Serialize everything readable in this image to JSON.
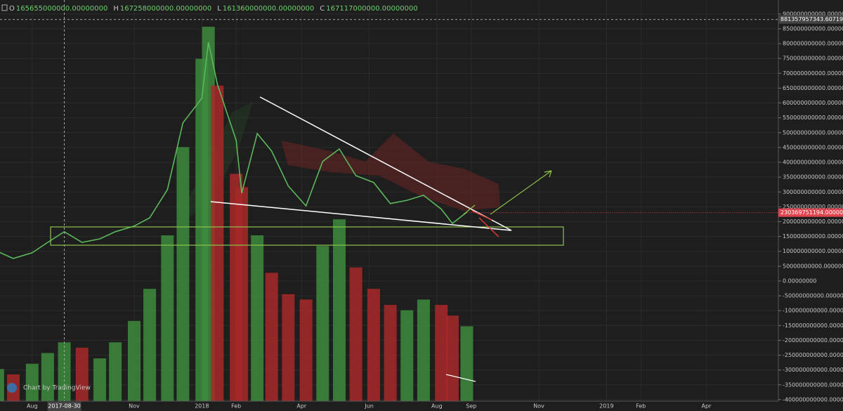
{
  "chart_data": {
    "type": "line",
    "header": {
      "items": [
        {
          "label": "O",
          "text": "165655000000.00000000"
        },
        {
          "label": "H",
          "text": "167258000000.00000000"
        },
        {
          "label": "L",
          "text": "161360000000.00000000"
        },
        {
          "label": "C",
          "text": "167117000000.00000000"
        }
      ]
    },
    "watermark": "Chart by TradingView",
    "x": [
      "2017-07-01",
      "2017-07-15",
      "2017-08-01",
      "2017-08-15",
      "2017-08-30",
      "2017-09-15",
      "2017-10-01",
      "2017-10-15",
      "2017-11-01",
      "2017-11-15",
      "2017-12-01",
      "2017-12-15",
      "2018-01-01",
      "2018-01-07",
      "2018-01-15",
      "2018-02-01",
      "2018-02-06",
      "2018-02-20",
      "2018-03-05",
      "2018-03-20",
      "2018-04-05",
      "2018-04-20",
      "2018-05-05",
      "2018-05-20",
      "2018-06-05",
      "2018-06-20",
      "2018-07-05",
      "2018-07-20",
      "2018-08-05",
      "2018-08-15",
      "2018-08-28"
    ],
    "series": [
      {
        "color": "#5cb85c",
        "values": [
          99000000000,
          76000000000,
          95000000000,
          130000000000,
          166000000000,
          130000000000,
          142000000000,
          166000000000,
          185000000000,
          213000000000,
          308000000000,
          533000000000,
          616000000000,
          805000000000,
          663000000000,
          474000000000,
          296000000000,
          497000000000,
          438000000000,
          320000000000,
          253000000000,
          403000000000,
          445000000000,
          355000000000,
          332000000000,
          261000000000,
          272000000000,
          289000000000,
          242000000000,
          194000000000,
          232000000000
        ]
      },
      {
        "axis": "y2",
        "values": [
          12,
          10,
          14,
          18,
          22,
          20,
          16,
          22,
          30,
          42,
          62,
          95,
          128,
          140,
          118,
          85,
          80,
          62,
          48,
          40,
          38,
          58,
          68,
          50,
          42,
          36,
          34,
          38,
          36,
          32,
          28
        ]
      }
    ],
    "up_color": "#3d8b3d",
    "down_color": "#a82828",
    "xlim": [
      "2017-07-03",
      "2019-06-05"
    ],
    "xticks": [
      {
        "value": "2017-08-01",
        "label": "Aug"
      },
      {
        "value": "2017-11-01",
        "label": "Nov"
      },
      {
        "value": "2018-01-01",
        "label": "2018"
      },
      {
        "value": "2018-02-01",
        "label": "Feb"
      },
      {
        "value": "2018-04-01",
        "label": "Apr"
      },
      {
        "value": "2018-06-01",
        "label": "Jun"
      },
      {
        "value": "2018-08-01",
        "label": "Aug"
      },
      {
        "value": "2018-09-01",
        "label": "Sep"
      },
      {
        "value": "2018-11-01",
        "label": "Nov"
      },
      {
        "value": "2019-01-01",
        "label": "2019"
      },
      {
        "value": "2019-02-01",
        "label": "Feb"
      },
      {
        "value": "2019-04-01",
        "label": "Apr"
      }
    ],
    "ylim": [
      -405000000000,
      947000000000
    ],
    "y2lim": [
      0,
      150
    ],
    "yticks": [
      {
        "value": 900000000000,
        "label": "900000000000.00000000"
      },
      {
        "value": 850000000000,
        "label": "850000000000.00000000"
      },
      {
        "value": 800000000000,
        "label": "800000000000.00000000"
      },
      {
        "value": 750000000000,
        "label": "750000000000.00000000"
      },
      {
        "value": 700000000000,
        "label": "700000000000.00000000"
      },
      {
        "value": 650000000000,
        "label": "650000000000.00000000"
      },
      {
        "value": 600000000000,
        "label": "600000000000.00000000"
      },
      {
        "value": 550000000000,
        "label": "550000000000.00000000"
      },
      {
        "value": 500000000000,
        "label": "500000000000.00000000"
      },
      {
        "value": 450000000000,
        "label": "450000000000.00000000"
      },
      {
        "value": 400000000000,
        "label": "400000000000.00000000"
      },
      {
        "value": 350000000000,
        "label": "350000000000.00000000"
      },
      {
        "value": 300000000000,
        "label": "300000000000.00000000"
      },
      {
        "value": 250000000000,
        "label": "250000000000.00000000"
      },
      {
        "value": 200000000000,
        "label": "200000000000.00000000"
      },
      {
        "value": 150000000000,
        "label": "150000000000.00000000"
      },
      {
        "value": 100000000000,
        "label": "100000000000.00000000"
      },
      {
        "value": 50000000000,
        "label": "50000000000.00000000"
      },
      {
        "value": 0,
        "label": "0.00000000"
      },
      {
        "value": -50000000000,
        "label": "-50000000000.00000000"
      },
      {
        "value": -100000000000,
        "label": "-100000000000.00000000"
      },
      {
        "value": -150000000000,
        "label": "-150000000000.00000000"
      },
      {
        "value": -200000000000,
        "label": "-200000000000.00000000"
      },
      {
        "value": -250000000000,
        "label": "-250000000000.00000000"
      },
      {
        "value": -300000000000,
        "label": "-300000000000.00000000"
      },
      {
        "value": -350000000000,
        "label": "-350000000000.00000000"
      },
      {
        "value": -400000000000,
        "label": "-400000000000.00000000"
      }
    ],
    "grid": true,
    "crosshair": {
      "x": {
        "value": "2017-08-30",
        "label": "2017-08-30"
      },
      "y": {
        "value": 881357957343.607,
        "label": "881357957343.60719104"
      }
    },
    "last_price": {
      "value": 230369751194,
      "label": "230369751194.00000000",
      "color": "#e0454f"
    }
  }
}
